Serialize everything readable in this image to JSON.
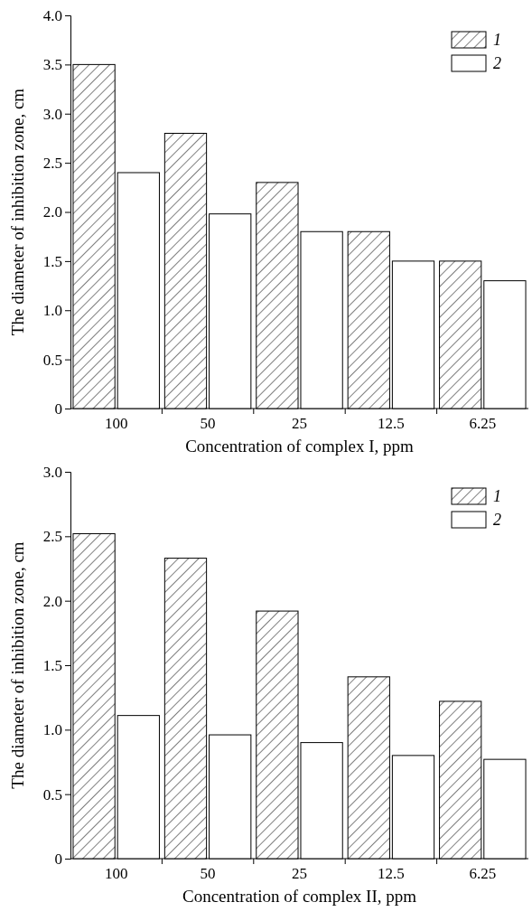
{
  "chart_data": [
    {
      "type": "bar",
      "xlabel": "Concentration of complex I, ppm",
      "ylabel": "The diameter of inhibition zone, cm",
      "categories": [
        "100",
        "50",
        "25",
        "12.5",
        "6.25"
      ],
      "ylim": [
        0,
        4
      ],
      "yticks": [
        0,
        0.5,
        {
          "value": 1,
          "label": "1.0"
        },
        1.5,
        {
          "value": 2,
          "label": "2.0"
        },
        2.5,
        {
          "value": 3,
          "label": "3.0"
        },
        3.5,
        {
          "value": 4,
          "label": "4.0"
        }
      ],
      "legend": "top right",
      "grid": false,
      "series": [
        {
          "name": "1",
          "color": "#000000",
          "values": [
            3.5,
            2.8,
            2.3,
            1.8,
            1.5
          ]
        },
        {
          "name": "2",
          "color": "#ffffff",
          "values": [
            2.4,
            1.98,
            1.8,
            1.5,
            1.3
          ]
        }
      ]
    },
    {
      "type": "bar",
      "xlabel": "Concentration of complex II, ppm",
      "ylabel": "The diameter of inhibition zone, cm",
      "categories": [
        "100",
        "50",
        "25",
        "12.5",
        "6.25"
      ],
      "ylim": [
        0,
        3
      ],
      "yticks": [
        0,
        0.5,
        {
          "value": 1,
          "label": "1.0"
        },
        1.5,
        {
          "value": 2,
          "label": "2.0"
        },
        2.5,
        {
          "value": 3,
          "label": "3.0"
        }
      ],
      "legend": "top right",
      "grid": false,
      "series": [
        {
          "name": "1",
          "color": "#000000",
          "values": [
            2.52,
            2.33,
            1.92,
            1.41,
            1.22
          ]
        },
        {
          "name": "2",
          "color": "#ffffff",
          "values": [
            1.11,
            0.96,
            0.9,
            0.8,
            0.77
          ]
        }
      ]
    }
  ]
}
